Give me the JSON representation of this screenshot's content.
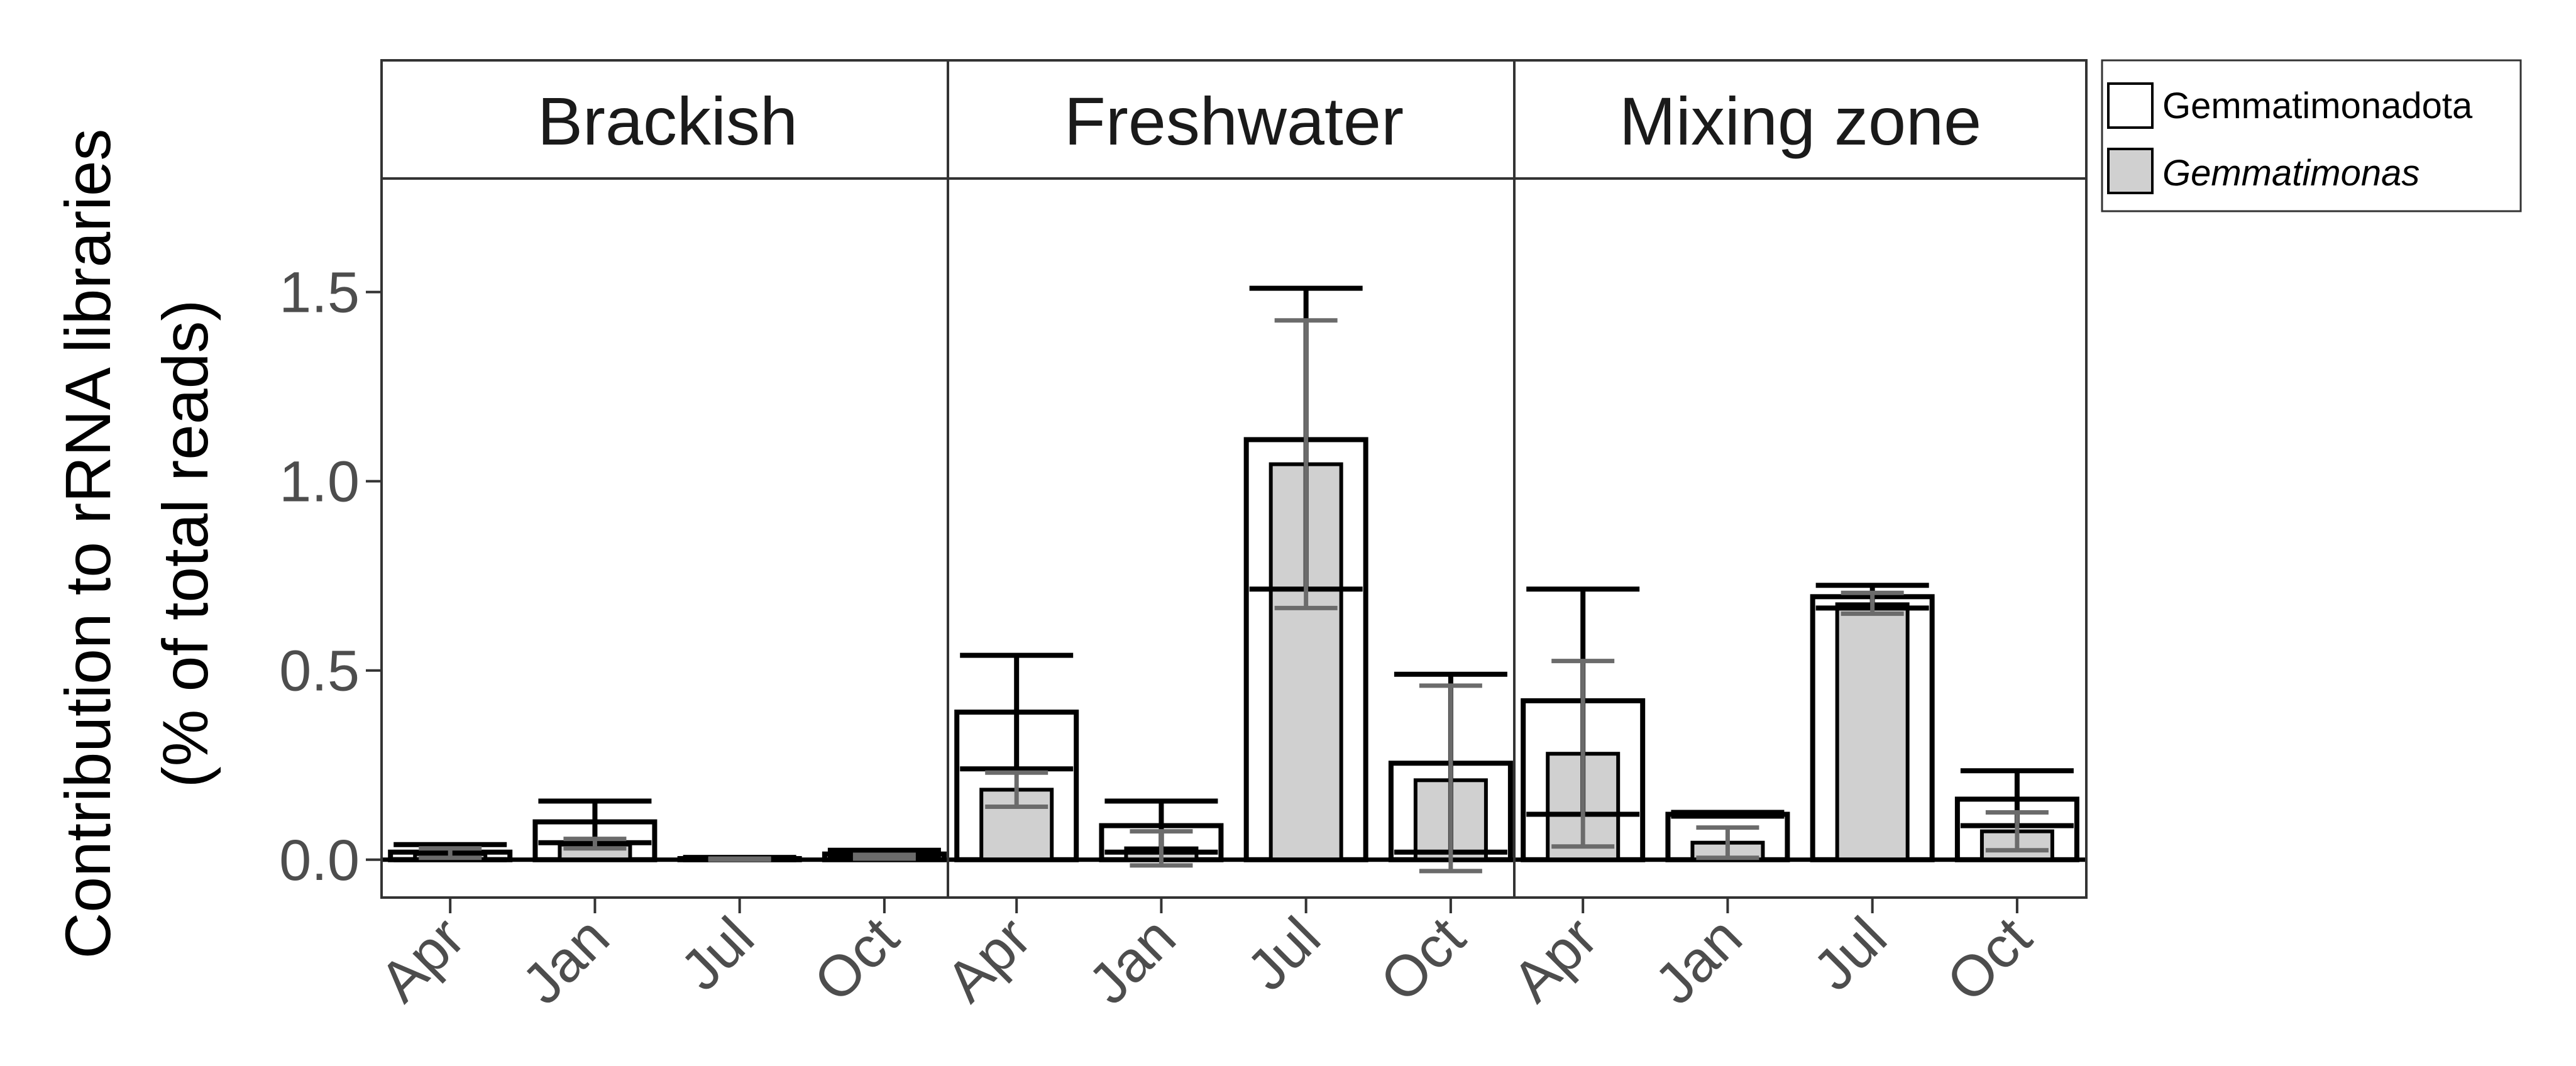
{
  "chart_data": {
    "type": "bar",
    "y_axis_label": [
      "Contribution to rRNA libraries",
      "(% of total reads)"
    ],
    "ylim": [
      -0.1,
      1.8
    ],
    "y_ticks": [
      {
        "value": 0.0,
        "label": "0.0"
      },
      {
        "value": 0.5,
        "label": "0.5"
      },
      {
        "value": 1.0,
        "label": "1.0"
      },
      {
        "value": 1.5,
        "label": "1.5"
      }
    ],
    "categories": [
      "Apr",
      "Jan",
      "Jul",
      "Oct"
    ],
    "legend": [
      {
        "label": "Gemmatimonadota",
        "fill": "#ffffff",
        "italic": false
      },
      {
        "label": "Gemmatimonas",
        "fill": "#d0d0d0",
        "italic": true
      }
    ],
    "colors": {
      "outer_bar_stroke": "#000000",
      "inner_bar_fill": "#d0d0d0",
      "inner_error_bar": "#6b6b6b",
      "outer_error_bar": "#000000"
    },
    "panels": [
      {
        "title": "Brackish",
        "series": [
          {
            "name": "Gemmatimonadota",
            "values": [
              0.02,
              0.1,
              0.003,
              0.015
            ],
            "err_low": [
              0.0,
              0.045,
              0.0,
              0.005
            ],
            "err_high": [
              0.04,
              0.155,
              0.006,
              0.025
            ]
          },
          {
            "name": "Gemmatimonas",
            "values": [
              0.015,
              0.04,
              0.001,
              0.008
            ],
            "err_low": [
              0.005,
              0.03,
              0.0,
              0.003
            ],
            "err_high": [
              0.03,
              0.055,
              0.003,
              0.013
            ]
          }
        ]
      },
      {
        "title": "Freshwater",
        "series": [
          {
            "name": "Gemmatimonadota",
            "values": [
              0.39,
              0.09,
              1.11,
              0.255
            ],
            "err_low": [
              0.24,
              0.02,
              0.715,
              0.02
            ],
            "err_high": [
              0.54,
              0.155,
              1.51,
              0.49
            ]
          },
          {
            "name": "Gemmatimonas",
            "values": [
              0.185,
              0.03,
              1.045,
              0.21
            ],
            "err_low": [
              0.14,
              -0.015,
              0.665,
              -0.03
            ],
            "err_high": [
              0.23,
              0.075,
              1.425,
              0.46
            ]
          }
        ]
      },
      {
        "title": "Mixing zone",
        "series": [
          {
            "name": "Gemmatimonadota",
            "values": [
              0.42,
              0.12,
              0.695,
              0.16
            ],
            "err_low": [
              0.12,
              0.115,
              0.665,
              0.09
            ],
            "err_high": [
              0.715,
              0.125,
              0.725,
              0.235
            ]
          },
          {
            "name": "Gemmatimonas",
            "values": [
              0.28,
              0.045,
              0.675,
              0.075
            ],
            "err_low": [
              0.035,
              0.005,
              0.65,
              0.025
            ],
            "err_high": [
              0.525,
              0.085,
              0.705,
              0.125
            ]
          }
        ]
      }
    ]
  }
}
